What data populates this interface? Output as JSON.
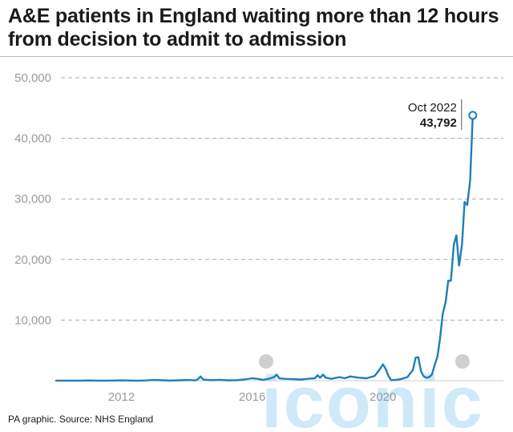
{
  "header": {
    "title": "A&E patients in England waiting more than 12 hours from decision to admit to admission"
  },
  "footer": {
    "source": "PA graphic. Source: NHS England"
  },
  "watermark": {
    "text": "iconic"
  },
  "colors": {
    "line": "#1f7fb5",
    "grid": "#aaaaaa",
    "tick_text": "#9a9a9a",
    "watermark": "#cfe9f7"
  },
  "chart_data": {
    "type": "line",
    "title": "A&E patients in England waiting more than 12 hours from decision to admit to admission",
    "xlabel": "",
    "ylabel": "",
    "ylim": [
      0,
      50000
    ],
    "xlim": [
      2010.0,
      2023.0
    ],
    "yticks": [
      10000,
      20000,
      30000,
      40000,
      50000
    ],
    "ytick_labels": [
      "10,000",
      "20,000",
      "30,000",
      "40,000",
      "50,000"
    ],
    "xticks": [
      2012,
      2016,
      2020
    ],
    "xtick_labels": [
      "2012",
      "2016",
      "2020"
    ],
    "grid": "horizontal dashed",
    "annotation": {
      "date_label": "Oct 2022",
      "value_label": "43,792",
      "x": 2022.75,
      "y": 43792
    },
    "series": [
      {
        "points": [
          [
            2010.0,
            15
          ],
          [
            2010.25,
            10
          ],
          [
            2010.5,
            12
          ],
          [
            2010.75,
            15
          ],
          [
            2011.0,
            40
          ],
          [
            2011.25,
            15
          ],
          [
            2011.5,
            10
          ],
          [
            2011.75,
            20
          ],
          [
            2012.0,
            50
          ],
          [
            2012.25,
            30
          ],
          [
            2012.5,
            15
          ],
          [
            2012.75,
            40
          ],
          [
            2013.0,
            120
          ],
          [
            2013.25,
            60
          ],
          [
            2013.5,
            20
          ],
          [
            2013.75,
            60
          ],
          [
            2014.0,
            120
          ],
          [
            2014.25,
            50
          ],
          [
            2014.33,
            200
          ],
          [
            2014.42,
            700
          ],
          [
            2014.5,
            200
          ],
          [
            2014.75,
            80
          ],
          [
            2015.0,
            150
          ],
          [
            2015.25,
            60
          ],
          [
            2015.5,
            80
          ],
          [
            2015.75,
            200
          ],
          [
            2016.0,
            400
          ],
          [
            2016.17,
            300
          ],
          [
            2016.33,
            150
          ],
          [
            2016.5,
            300
          ],
          [
            2016.67,
            600
          ],
          [
            2016.75,
            1000
          ],
          [
            2016.83,
            400
          ],
          [
            2017.0,
            300
          ],
          [
            2017.25,
            250
          ],
          [
            2017.5,
            200
          ],
          [
            2017.75,
            350
          ],
          [
            2017.92,
            400
          ],
          [
            2018.0,
            900
          ],
          [
            2018.08,
            500
          ],
          [
            2018.17,
            1000
          ],
          [
            2018.25,
            500
          ],
          [
            2018.42,
            300
          ],
          [
            2018.67,
            600
          ],
          [
            2018.83,
            400
          ],
          [
            2019.0,
            700
          ],
          [
            2019.25,
            500
          ],
          [
            2019.5,
            400
          ],
          [
            2019.75,
            800
          ],
          [
            2019.92,
            2000
          ],
          [
            2020.0,
            2700
          ],
          [
            2020.08,
            2000
          ],
          [
            2020.17,
            800
          ],
          [
            2020.25,
            100
          ],
          [
            2020.42,
            150
          ],
          [
            2020.58,
            300
          ],
          [
            2020.75,
            600
          ],
          [
            2020.92,
            1800
          ],
          [
            2021.0,
            3800
          ],
          [
            2021.08,
            3900
          ],
          [
            2021.17,
            1500
          ],
          [
            2021.25,
            700
          ],
          [
            2021.33,
            500
          ],
          [
            2021.42,
            600
          ],
          [
            2021.5,
            1000
          ],
          [
            2021.58,
            2500
          ],
          [
            2021.67,
            4000
          ],
          [
            2021.75,
            7000
          ],
          [
            2021.83,
            11000
          ],
          [
            2021.92,
            13000
          ],
          [
            2022.0,
            16500
          ],
          [
            2022.08,
            16500
          ],
          [
            2022.17,
            22500
          ],
          [
            2022.25,
            24000
          ],
          [
            2022.33,
            19000
          ],
          [
            2022.42,
            22500
          ],
          [
            2022.5,
            29500
          ],
          [
            2022.58,
            29000
          ],
          [
            2022.67,
            33000
          ],
          [
            2022.75,
            43792
          ]
        ]
      }
    ]
  }
}
